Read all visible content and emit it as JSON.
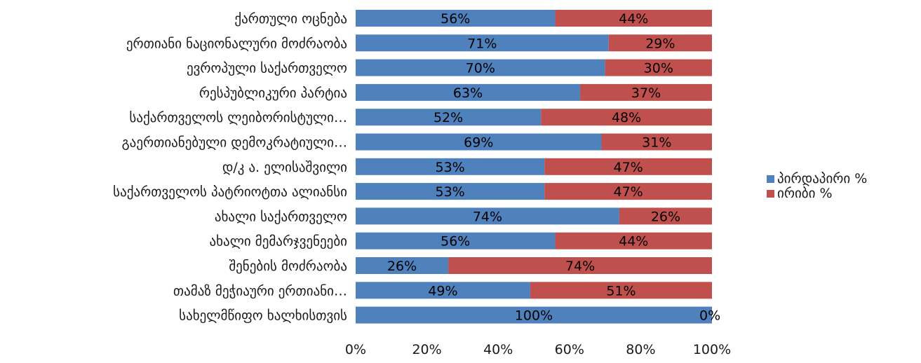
{
  "chart_data": {
    "type": "bar",
    "orientation": "horizontal",
    "stacked": "percent",
    "categories": [
      "ქართული ოცნება",
      "ერთიანი ნაციონალური მოძრაობა",
      "ევროპული საქართველო",
      "რესპუბლიკური პარტია",
      "საქართველოს ლეიბორისტული…",
      "გაერთიანებული დემოკრატიული…",
      "დ/კ ა. ელისაშვილი",
      "საქართველოს პატრიოტთა ალიანსი",
      "ახალი საქართველო",
      "ახალი მემარჯვენეები",
      "შენების მოძრაობა",
      "თამაზ მეჭიაური ერთიანი…",
      "სახელმწიფო ხალხისთვის"
    ],
    "series": [
      {
        "name": "პირდაპირი %",
        "color": "#4f81bd",
        "values": [
          56,
          71,
          70,
          63,
          52,
          69,
          53,
          53,
          74,
          56,
          26,
          49,
          100
        ],
        "labels": [
          "56%",
          "71%",
          "70%",
          "63%",
          "52%",
          "69%",
          "53%",
          "53%",
          "74%",
          "56%",
          "26%",
          "49%",
          "100%"
        ]
      },
      {
        "name": "ირიბი %",
        "color": "#c0504d",
        "values": [
          44,
          29,
          30,
          37,
          48,
          31,
          47,
          47,
          26,
          44,
          74,
          51,
          0
        ],
        "labels": [
          "44%",
          "29%",
          "30%",
          "37%",
          "48%",
          "31%",
          "47%",
          "47%",
          "26%",
          "44%",
          "74%",
          "51%",
          "0%"
        ]
      }
    ],
    "xlim": [
      0,
      100
    ],
    "x_ticks": [
      "0%",
      "20%",
      "40%",
      "60%",
      "80%",
      "100%"
    ],
    "grid": false,
    "legend_position": "right"
  }
}
